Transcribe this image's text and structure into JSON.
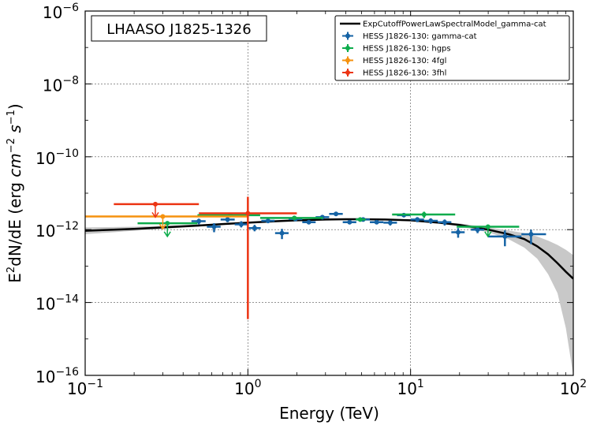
{
  "chart_data": {
    "type": "scatter",
    "title": "",
    "annotation": "LHAASO J1825-1326",
    "xlabel": "Energy (TeV)",
    "ylabel": "E²dN/dE (erg cm⁻² s⁻¹)",
    "ylabel_parts": {
      "base": "E",
      "sup1": "2",
      "mid": "dN/dE (erg ",
      "cm": "cm",
      "sup2": "−2",
      "s": " s",
      "sup3": "−1",
      "end": ")"
    },
    "x_scale": "log",
    "y_scale": "log",
    "xlim": [
      0.1,
      100
    ],
    "ylim": [
      1e-16,
      1e-06
    ],
    "grid": true,
    "legend_position": "top-right",
    "x_ticks": [
      {
        "value": 0.1,
        "base": "10",
        "exp": "−1"
      },
      {
        "value": 1,
        "base": "10",
        "exp": "0"
      },
      {
        "value": 10,
        "base": "10",
        "exp": "1"
      },
      {
        "value": 100,
        "base": "10",
        "exp": "2"
      }
    ],
    "y_ticks": [
      {
        "value": 1e-16,
        "base": "10",
        "exp": "−16"
      },
      {
        "value": 1e-14,
        "base": "10",
        "exp": "−14"
      },
      {
        "value": 1e-12,
        "base": "10",
        "exp": "−12"
      },
      {
        "value": 1e-10,
        "base": "10",
        "exp": "−10"
      },
      {
        "value": 1e-08,
        "base": "10",
        "exp": "−8"
      },
      {
        "value": 1e-06,
        "base": "10",
        "exp": "−6"
      }
    ],
    "model": {
      "name": "ExpCutoffPowerLawSpectralModel_gamma-cat",
      "color": "#000000",
      "band_color": "#c8c8c8",
      "x": [
        0.1,
        0.15,
        0.2,
        0.3,
        0.5,
        0.7,
        1,
        1.5,
        2,
        3,
        4,
        5,
        7,
        10,
        15,
        20,
        30,
        40,
        50,
        60,
        70,
        80,
        90,
        100
      ],
      "y": [
        9.3e-13,
        1e-12,
        1.05e-12,
        1.15e-12,
        1.3e-12,
        1.42e-12,
        1.55e-12,
        1.7e-12,
        1.8e-12,
        1.9e-12,
        1.93e-12,
        1.93e-12,
        1.9e-12,
        1.8e-12,
        1.55e-12,
        1.35e-12,
        1e-12,
        7.5e-13,
        5.5e-13,
        3.5e-13,
        2.1e-13,
        1.2e-13,
        7e-14,
        4.5e-14
      ],
      "band_lo": [
        7.5e-13,
        8.5e-13,
        9.3e-13,
        1.05e-12,
        1.22e-12,
        1.36e-12,
        1.5e-12,
        1.65e-12,
        1.75e-12,
        1.85e-12,
        1.88e-12,
        1.88e-12,
        1.84e-12,
        1.72e-12,
        1.45e-12,
        1.22e-12,
        8.5e-13,
        5.5e-13,
        3.2e-13,
        1.6e-13,
        6e-14,
        1.8e-14,
        2e-15,
        1e-16
      ],
      "band_hi": [
        1.15e-12,
        1.18e-12,
        1.2e-12,
        1.27e-12,
        1.39e-12,
        1.48e-12,
        1.6e-12,
        1.75e-12,
        1.85e-12,
        1.95e-12,
        1.98e-12,
        1.98e-12,
        1.96e-12,
        1.88e-12,
        1.65e-12,
        1.48e-12,
        1.15e-12,
        9.5e-13,
        8e-13,
        6.5e-13,
        5e-13,
        3.8e-13,
        2.8e-13,
        2e-13
      ]
    },
    "series": [
      {
        "name": "HESS J1826-130: gamma-cat",
        "color": "#1563a5",
        "points": [
          {
            "x": 0.5,
            "y": 1.7e-12,
            "x_lo": 0.45,
            "x_hi": 0.55,
            "y_lo": 1.4e-12,
            "y_hi": 2e-12,
            "ul": false
          },
          {
            "x": 0.62,
            "y": 1.2e-12,
            "x_lo": 0.56,
            "x_hi": 0.68,
            "y_lo": 8.5e-13,
            "y_hi": 1.5e-12,
            "ul": false
          },
          {
            "x": 0.75,
            "y": 1.9e-12,
            "x_lo": 0.68,
            "x_hi": 0.83,
            "y_lo": 1.6e-12,
            "y_hi": 2.2e-12,
            "ul": false
          },
          {
            "x": 0.91,
            "y": 1.4e-12,
            "x_lo": 0.83,
            "x_hi": 1.0,
            "y_lo": 1.15e-12,
            "y_hi": 1.7e-12,
            "ul": false
          },
          {
            "x": 1.1,
            "y": 1.1e-12,
            "x_lo": 1.0,
            "x_hi": 1.2,
            "y_lo": 9e-13,
            "y_hi": 1.35e-12,
            "ul": false
          },
          {
            "x": 1.33,
            "y": 1.75e-12,
            "x_lo": 1.21,
            "x_hi": 1.46,
            "y_lo": 1.5e-12,
            "y_hi": 2e-12,
            "ul": false
          },
          {
            "x": 1.62,
            "y": 8e-13,
            "x_lo": 1.47,
            "x_hi": 1.78,
            "y_lo": 5.5e-13,
            "y_hi": 1.05e-12,
            "ul": false
          },
          {
            "x": 1.96,
            "y": 1.95e-12,
            "x_lo": 1.78,
            "x_hi": 2.16,
            "y_lo": 1.75e-12,
            "y_hi": 2.15e-12,
            "ul": false
          },
          {
            "x": 2.37,
            "y": 1.6e-12,
            "x_lo": 2.16,
            "x_hi": 2.61,
            "y_lo": 1.4e-12,
            "y_hi": 1.8e-12,
            "ul": false
          },
          {
            "x": 2.87,
            "y": 2.2e-12,
            "x_lo": 2.61,
            "x_hi": 3.16,
            "y_lo": 2e-12,
            "y_hi": 2.4e-12,
            "ul": false
          },
          {
            "x": 3.48,
            "y": 2.7e-12,
            "x_lo": 3.16,
            "x_hi": 3.83,
            "y_lo": 2.5e-12,
            "y_hi": 2.9e-12,
            "ul": false
          },
          {
            "x": 4.22,
            "y": 1.6e-12,
            "x_lo": 3.83,
            "x_hi": 4.64,
            "y_lo": 1.4e-12,
            "y_hi": 1.8e-12,
            "ul": false
          },
          {
            "x": 5.11,
            "y": 1.9e-12,
            "x_lo": 4.64,
            "x_hi": 5.62,
            "y_lo": 1.7e-12,
            "y_hi": 2.1e-12,
            "ul": false
          },
          {
            "x": 6.19,
            "y": 1.6e-12,
            "x_lo": 5.62,
            "x_hi": 6.81,
            "y_lo": 1.4e-12,
            "y_hi": 1.8e-12,
            "ul": false
          },
          {
            "x": 7.5,
            "y": 1.55e-12,
            "x_lo": 6.81,
            "x_hi": 8.25,
            "y_lo": 1.3e-12,
            "y_hi": 1.8e-12,
            "ul": false
          },
          {
            "x": 9.09,
            "y": 2.5e-12,
            "x_lo": 8.25,
            "x_hi": 10.0,
            "y_lo": 2.2e-12,
            "y_hi": 2.8e-12,
            "ul": false
          },
          {
            "x": 11.0,
            "y": 1.9e-12,
            "x_lo": 10.0,
            "x_hi": 12.1,
            "y_lo": 1.6e-12,
            "y_hi": 2.2e-12,
            "ul": false
          },
          {
            "x": 13.3,
            "y": 1.75e-12,
            "x_lo": 12.1,
            "x_hi": 14.7,
            "y_lo": 1.45e-12,
            "y_hi": 2.05e-12,
            "ul": false
          },
          {
            "x": 16.2,
            "y": 1.6e-12,
            "x_lo": 14.7,
            "x_hi": 17.8,
            "y_lo": 1.3e-12,
            "y_hi": 1.9e-12,
            "ul": false
          },
          {
            "x": 19.6,
            "y": 8.5e-13,
            "x_lo": 17.8,
            "x_hi": 21.5,
            "y_lo": 6e-13,
            "y_hi": 1.1e-12,
            "ul": false
          },
          {
            "x": 25.8,
            "y": 1e-12,
            "x_lo": 23.5,
            "x_hi": 28.3,
            "y_lo": 8e-13,
            "y_hi": 1.2e-12,
            "ul": false
          },
          {
            "x": 38.0,
            "y": 6.5e-13,
            "x_lo": 30.0,
            "x_hi": 48.0,
            "y_lo": 3.5e-13,
            "y_hi": 9.5e-13,
            "ul": false
          },
          {
            "x": 55.0,
            "y": 7.5e-13,
            "x_lo": 48.0,
            "x_hi": 68.0,
            "y_lo": 4e-13,
            "y_hi": 1e-12,
            "ul": false
          }
        ]
      },
      {
        "name": "HESS J1826-130: hgps",
        "color": "#0dac4c",
        "points": [
          {
            "x": 0.32,
            "y": 1.5e-12,
            "x_lo": 0.21,
            "x_hi": 0.49,
            "y_lo": 6.5e-13,
            "y_hi": 1.5e-12,
            "ul": true
          },
          {
            "x": 0.78,
            "y": 2.5e-12,
            "x_lo": 0.49,
            "x_hi": 1.19,
            "y_lo": 2.2e-12,
            "y_hi": 2.8e-12,
            "ul": false
          },
          {
            "x": 1.93,
            "y": 2.1e-12,
            "x_lo": 1.19,
            "x_hi": 2.9,
            "y_lo": 1.85e-12,
            "y_hi": 2.35e-12,
            "ul": false
          },
          {
            "x": 4.9,
            "y": 1.9e-12,
            "x_lo": 4.6,
            "x_hi": 5.3,
            "y_lo": 1.7e-12,
            "y_hi": 2.1e-12,
            "ul": false
          },
          {
            "x": 12.1,
            "y": 2.6e-12,
            "x_lo": 7.7,
            "x_hi": 18.8,
            "y_lo": 2.1e-12,
            "y_hi": 3.1e-12,
            "ul": false
          },
          {
            "x": 29.9,
            "y": 1.2e-12,
            "x_lo": 19.2,
            "x_hi": 46.5,
            "y_lo": 6.5e-13,
            "y_hi": 1.2e-12,
            "ul": true
          }
        ]
      },
      {
        "name": "HESS J1826-130: 4fgl",
        "color": "#f5920f",
        "points": [
          {
            "x": 0.3,
            "y": 2.3e-12,
            "x_lo": 0.1,
            "x_hi": 1.0,
            "y_lo": 1.05e-12,
            "y_hi": 2.3e-12,
            "ul": true
          }
        ]
      },
      {
        "name": "HESS J1826-130: 3fhl",
        "color": "#ec3413",
        "points": [
          {
            "x": 0.27,
            "y": 5e-12,
            "x_lo": 0.15,
            "x_hi": 0.5,
            "y_lo": 2.2e-12,
            "y_hi": 5e-12,
            "ul": true
          },
          {
            "x": 1.0,
            "y": 2.8e-12,
            "x_lo": 0.5,
            "x_hi": 2.0,
            "y_lo": 3.5e-15,
            "y_hi": 8e-12,
            "ul": false
          }
        ]
      }
    ]
  }
}
